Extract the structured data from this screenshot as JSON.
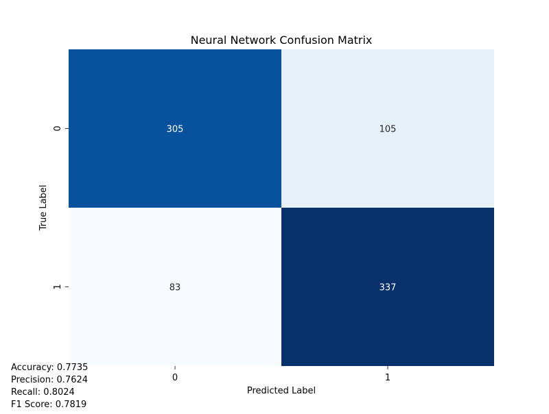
{
  "chart_data": {
    "type": "heatmap",
    "title": "Neural Network Confusion Matrix",
    "xlabel": "Predicted Label",
    "ylabel": "True Label",
    "x_categories": [
      "0",
      "1"
    ],
    "y_categories": [
      "0",
      "1"
    ],
    "values": [
      [
        305,
        105
      ],
      [
        83,
        337
      ]
    ],
    "colormap": "Blues",
    "color_low": "#f7fbff",
    "color_high": "#08306b",
    "annotation_color_dark_cells": "#ffffff",
    "annotation_color_light_cells": "#262626",
    "colorbar": false
  },
  "metrics": {
    "accuracy": "Accuracy: 0.7735",
    "precision": "Precision: 0.7624",
    "recall": "Recall: 0.8024",
    "f1": "F1 Score: 0.7819"
  }
}
